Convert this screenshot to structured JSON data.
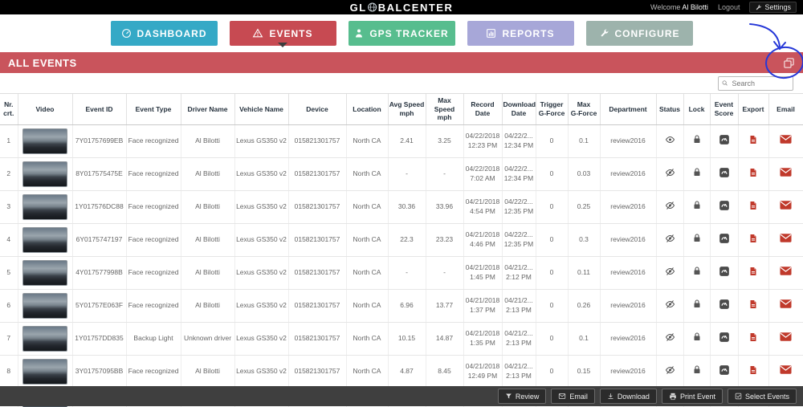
{
  "header": {
    "brand_left": "GL",
    "brand_right": "BALCENTER",
    "welcome_label": "Welcome",
    "user": "Al Bilotti",
    "logout_label": "Logout",
    "settings_label": "Settings"
  },
  "nav": {
    "items": [
      {
        "label": "DASHBOARD",
        "icon": "dashboard-gauge-icon",
        "active": false
      },
      {
        "label": "EVENTS",
        "icon": "events-warning-icon",
        "active": true
      },
      {
        "label": "GPS TRACKER",
        "icon": "gps-person-icon",
        "active": false
      },
      {
        "label": "REPORTS",
        "icon": "reports-chart-icon",
        "active": false
      },
      {
        "label": "CONFIGURE",
        "icon": "configure-wrench-icon",
        "active": false
      }
    ]
  },
  "colors": {
    "dashboard": "#35a9c6",
    "events": "#c74a52",
    "gps_tracker": "#57bd8e",
    "reports": "#a7a7d8",
    "configure": "#9db3ac",
    "banner": "#c9545c",
    "icon_red": "#c0392b",
    "annotation_ink": "#2638d8"
  },
  "banner": {
    "title": "ALL EVENTS"
  },
  "search": {
    "placeholder": "Search"
  },
  "table": {
    "headers": [
      "Nr.\ncrt.",
      "Video",
      "Event ID",
      "Event Type",
      "Driver Name",
      "Vehicle Name",
      "Device",
      "Location",
      "Avg Speed\nmph",
      "Max Speed\nmph",
      "Record Date",
      "Download\nDate",
      "Trigger\nG-Force",
      "Max\nG-Force",
      "Department",
      "Status",
      "Lock",
      "Event\nScore",
      "Export",
      "Email"
    ],
    "rows": [
      {
        "nr": "1",
        "event_id": "7Y01757699EB",
        "event_type": "Face recognized",
        "driver": "Al Bilotti",
        "vehicle": "Lexus GS350 v2",
        "device": "015821301757",
        "location": "North CA",
        "avg_speed": "2.41",
        "max_speed": "3.25",
        "record_date": "04/22/2018\n12:23 PM",
        "download_date": "04/22/2...\n12:34 PM",
        "trigger_g": "0",
        "max_g": "0.1",
        "department": "review2016",
        "status": "viewed"
      },
      {
        "nr": "2",
        "event_id": "8Y017575475E",
        "event_type": "Face recognized",
        "driver": "Al Bilotti",
        "vehicle": "Lexus GS350 v2",
        "device": "015821301757",
        "location": "North CA",
        "avg_speed": "-",
        "max_speed": "-",
        "record_date": "04/22/2018\n7:02 AM",
        "download_date": "04/22/2...\n12:34 PM",
        "trigger_g": "0",
        "max_g": "0.03",
        "department": "review2016",
        "status": "not-viewed"
      },
      {
        "nr": "3",
        "event_id": "1Y017576DC88",
        "event_type": "Face recognized",
        "driver": "Al Bilotti",
        "vehicle": "Lexus GS350 v2",
        "device": "015821301757",
        "location": "North CA",
        "avg_speed": "30.36",
        "max_speed": "33.96",
        "record_date": "04/21/2018\n4:54 PM",
        "download_date": "04/22/2...\n12:35 PM",
        "trigger_g": "0",
        "max_g": "0.25",
        "department": "review2016",
        "status": "not-viewed"
      },
      {
        "nr": "4",
        "event_id": "6Y0175747197",
        "event_type": "Face recognized",
        "driver": "Al Bilotti",
        "vehicle": "Lexus GS350 v2",
        "device": "015821301757",
        "location": "North CA",
        "avg_speed": "22.3",
        "max_speed": "23.23",
        "record_date": "04/21/2018\n4:46 PM",
        "download_date": "04/22/2...\n12:35 PM",
        "trigger_g": "0",
        "max_g": "0.3",
        "department": "review2016",
        "status": "not-viewed"
      },
      {
        "nr": "5",
        "event_id": "4Y017577998B",
        "event_type": "Face recognized",
        "driver": "Al Bilotti",
        "vehicle": "Lexus GS350 v2",
        "device": "015821301757",
        "location": "North CA",
        "avg_speed": "-",
        "max_speed": "-",
        "record_date": "04/21/2018\n1:45 PM",
        "download_date": "04/21/2...\n2:12 PM",
        "trigger_g": "0",
        "max_g": "0.11",
        "department": "review2016",
        "status": "not-viewed"
      },
      {
        "nr": "6",
        "event_id": "5Y01757E063F",
        "event_type": "Face recognized",
        "driver": "Al Bilotti",
        "vehicle": "Lexus GS350 v2",
        "device": "015821301757",
        "location": "North CA",
        "avg_speed": "6.96",
        "max_speed": "13.77",
        "record_date": "04/21/2018\n1:37 PM",
        "download_date": "04/21/2...\n2:13 PM",
        "trigger_g": "0",
        "max_g": "0.26",
        "department": "review2016",
        "status": "not-viewed"
      },
      {
        "nr": "7",
        "event_id": "1Y01757DD835",
        "event_type": "Backup Light",
        "driver": "Unknown driver",
        "vehicle": "Lexus GS350 v2",
        "device": "015821301757",
        "location": "North CA",
        "avg_speed": "10.15",
        "max_speed": "14.87",
        "record_date": "04/21/2018\n1:35 PM",
        "download_date": "04/21/2...\n2:13 PM",
        "trigger_g": "0",
        "max_g": "0.1",
        "department": "review2016",
        "status": "not-viewed"
      },
      {
        "nr": "8",
        "event_id": "3Y01757095BB",
        "event_type": "Face recognized",
        "driver": "Al Bilotti",
        "vehicle": "Lexus GS350 v2",
        "device": "015821301757",
        "location": "North CA",
        "avg_speed": "4.87",
        "max_speed": "8.45",
        "record_date": "04/21/2018\n12:49 PM",
        "download_date": "04/21/2...\n2:13 PM",
        "trigger_g": "0",
        "max_g": "0.15",
        "department": "review2016",
        "status": "not-viewed"
      },
      {
        "nr": "",
        "event_id": "",
        "event_type": "",
        "driver": "",
        "vehicle": "",
        "device": "",
        "location": "",
        "avg_speed": "",
        "max_speed": "",
        "record_date": "",
        "download_date": "",
        "trigger_g": "",
        "max_g": "",
        "department": "",
        "status": "partial"
      }
    ]
  },
  "footer": {
    "buttons": [
      {
        "label": "Review",
        "icon": "filter-icon"
      },
      {
        "label": "Email",
        "icon": "envelope-icon"
      },
      {
        "label": "Download",
        "icon": "download-icon"
      },
      {
        "label": "Print Event",
        "icon": "printer-icon"
      },
      {
        "label": "Select Events",
        "icon": "checkbox-icon"
      }
    ]
  }
}
